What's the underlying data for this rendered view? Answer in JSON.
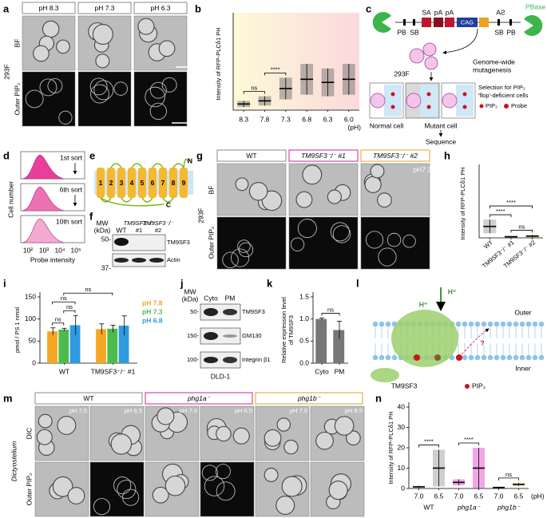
{
  "panels": {
    "a": {
      "letter": "a",
      "headers": [
        "pH 8.3",
        "pH 7.3",
        "pH 6.3"
      ],
      "rows": [
        "BF",
        "Outer PIP₂"
      ],
      "cell_line": "293F"
    },
    "b": {
      "letter": "b"
    },
    "c": {
      "letter": "c",
      "pbase": "PBase",
      "top": [
        "SA",
        "pA",
        "pA",
        "SA"
      ],
      "bottom": [
        "PB",
        "SB",
        "SB",
        "PB"
      ],
      "cag": "CAG",
      "cell_line": "293F",
      "mutagenesis": [
        "Genome-wide",
        "mutagenesis"
      ],
      "selection": [
        "Selection for PIP₂",
        "'flop'-deficient cells"
      ],
      "legend": [
        "PIP₂",
        "Probe"
      ],
      "normal": "Normal cell",
      "mutant": "Mutant cell",
      "sequence": "Sequence"
    },
    "d": {
      "letter": "d",
      "sorts": [
        "1st sort",
        "6th sort",
        "10th sort"
      ],
      "ylabel": "Cell number",
      "xlabel": "Probe intensity",
      "xticks": [
        "10²",
        "10³",
        "10⁴",
        "10⁵"
      ]
    },
    "e": {
      "letter": "e",
      "segments": [
        "1",
        "2",
        "3",
        "4",
        "5",
        "6",
        "7",
        "8",
        "9"
      ],
      "n": "N",
      "c": "C"
    },
    "f": {
      "letter": "f",
      "mw": [
        "MW",
        "(kDa)"
      ],
      "lanes": [
        [
          "WT"
        ],
        [
          "TM9SF3⁻/⁻",
          "#1"
        ],
        [
          "TM9SF3⁻/⁻",
          "#2"
        ]
      ],
      "markers": [
        "50-",
        "37-"
      ],
      "bands": [
        "TM9SF3",
        "Actin"
      ]
    },
    "g": {
      "letter": "g",
      "headers": [
        "WT",
        "TM9SF3⁻/⁻ #1",
        "TM9SF3⁻/⁻ #2"
      ],
      "ph": "pH7.3",
      "rows": [
        "BF",
        "Outer PIP₂"
      ],
      "cell_line": "293F"
    },
    "h": {
      "letter": "h"
    },
    "i": {
      "letter": "i"
    },
    "j": {
      "letter": "j",
      "mw": [
        "MW",
        "(kDa)"
      ],
      "lanes": [
        "Cyto",
        "PM"
      ],
      "markers": [
        "50-",
        "150-",
        "100-"
      ],
      "bands": [
        "TM9SF3",
        "GM130",
        "Integrin β1"
      ],
      "cell_line": "DLD-1"
    },
    "k": {
      "letter": "k"
    },
    "l": {
      "letter": "l",
      "protons": [
        "H⁺",
        "H⁺"
      ],
      "outer": "Outer",
      "inner": "Inner",
      "protein": "TM9SF3",
      "lipid": "PIP₂",
      "question": "?"
    },
    "m": {
      "letter": "m",
      "headers": [
        "WT",
        "phg1a⁻",
        "phg1b⁻"
      ],
      "ph": [
        "pH 7.0",
        "pH 6.5",
        "pH 7.0",
        "pH 6.5",
        "pH 7.0",
        "pH 6.5"
      ],
      "rows": [
        "DIC",
        "Outer PIP₂"
      ],
      "organism": "Dictyostelium"
    },
    "n": {
      "letter": "n"
    }
  },
  "chart_data": [
    {
      "type": "strip",
      "ylabel": "Intensity of RFP-PLCδ1 PH",
      "xlabel": "(pH)",
      "categories": [
        "8.3",
        "7.8",
        "7.3",
        "6.8",
        "6.3",
        "6.0"
      ],
      "values": [
        0.2,
        0.3,
        0.7,
        1.0,
        0.9,
        1.0
      ],
      "errors": [
        0.1,
        0.15,
        0.35,
        0.5,
        0.45,
        0.5
      ],
      "color": "#555555",
      "ylim": [
        0,
        3
      ],
      "comparisons": [
        {
          "label": "ns",
          "between": [
            0,
            1
          ]
        },
        {
          "label": "****",
          "between": [
            1,
            2
          ]
        }
      ]
    },
    {
      "type": "strip",
      "ylabel": "Intensity of RFP-PLCδ1 PH",
      "categories": [
        "WT",
        "TM9SF3⁻/⁻ #1",
        "TM9SF3⁻/⁻ #2"
      ],
      "values": [
        1.0,
        0.1,
        0.15
      ],
      "errors": [
        0.6,
        0.05,
        0.1
      ],
      "colors": [
        "#888888",
        "#e020c0",
        "#f0a020"
      ],
      "ylim": [
        0,
        6
      ],
      "comparisons": [
        {
          "label": "****",
          "between": [
            0,
            1
          ]
        },
        {
          "label": "ns",
          "between": [
            1,
            2
          ]
        },
        {
          "label": "****",
          "between": [
            0,
            2
          ]
        }
      ]
    },
    {
      "type": "bar",
      "ylabel": "pmol / PS 1 nmol",
      "categories": [
        "WT",
        "TM9SF3⁻/⁻ #1"
      ],
      "series": [
        {
          "name": "pH 7.8",
          "color": "#f5a623",
          "values": [
            72,
            77
          ],
          "errors": [
            8,
            12
          ]
        },
        {
          "name": "pH 7.3",
          "color": "#4cbb4c",
          "values": [
            76,
            78
          ],
          "errors": [
            3,
            8
          ]
        },
        {
          "name": "pH 6.8",
          "color": "#2f9ae0",
          "values": [
            86,
            85
          ],
          "errors": [
            22,
            22
          ]
        }
      ],
      "ylim": [
        0,
        150
      ],
      "yticks": [
        0,
        50,
        100,
        150
      ],
      "comparisons": [
        {
          "label": "ns",
          "from": {
            "category": 0,
            "series": 0
          },
          "to": {
            "category": 0,
            "series": 1
          }
        },
        {
          "label": "ns",
          "from": {
            "category": 0,
            "series": 1
          },
          "to": {
            "category": 0,
            "series": 2
          }
        },
        {
          "label": "ns",
          "from": {
            "category": 0,
            "series": 0
          },
          "to": {
            "category": 0,
            "series": 2
          }
        },
        {
          "label": "ns",
          "from": {
            "category": 0,
            "series": 1
          },
          "to": {
            "category": 1,
            "series": 1
          }
        }
      ]
    },
    {
      "type": "bar",
      "ylabel": [
        "Relative expression level",
        "of TM9SF3"
      ],
      "categories": [
        "Cyto",
        "PM"
      ],
      "values": [
        1.0,
        0.75
      ],
      "errors": [
        0.02,
        0.2
      ],
      "color": "#777777",
      "ylim": [
        0,
        1.5
      ],
      "yticks": [
        {
          "value": 0,
          "label": "0.0"
        },
        0.5,
        {
          "value": 1,
          "label": "1.0"
        },
        1.5
      ],
      "comparisons": [
        {
          "label": "ns",
          "between": [
            0,
            1
          ]
        }
      ]
    },
    {
      "type": "strip",
      "ylabel": "Intensity of RFP-PLCδ1 PH",
      "xlabel": "(pH)",
      "categories": [
        "7.0",
        "6.5",
        "7.0",
        "6.5",
        "7.0",
        "6.5"
      ],
      "groups": [
        "WT",
        "phg1a⁻",
        "phg1b⁻"
      ],
      "values": [
        0.8,
        10,
        3,
        10,
        0.5,
        2
      ],
      "errors": [
        0.5,
        9,
        1.5,
        10,
        0.3,
        0.8
      ],
      "colors": [
        "#888888",
        "#888888",
        "#e020c0",
        "#e020c0",
        "#f0a020",
        "#f0a020"
      ],
      "ylim": [
        0,
        40
      ],
      "yticks": [
        0,
        10,
        20,
        30,
        40
      ],
      "comparisons": [
        {
          "label": "****",
          "between": [
            0,
            1
          ]
        },
        {
          "label": "****",
          "between": [
            2,
            3
          ]
        },
        {
          "label": "ns",
          "between": [
            4,
            5
          ]
        }
      ]
    }
  ]
}
